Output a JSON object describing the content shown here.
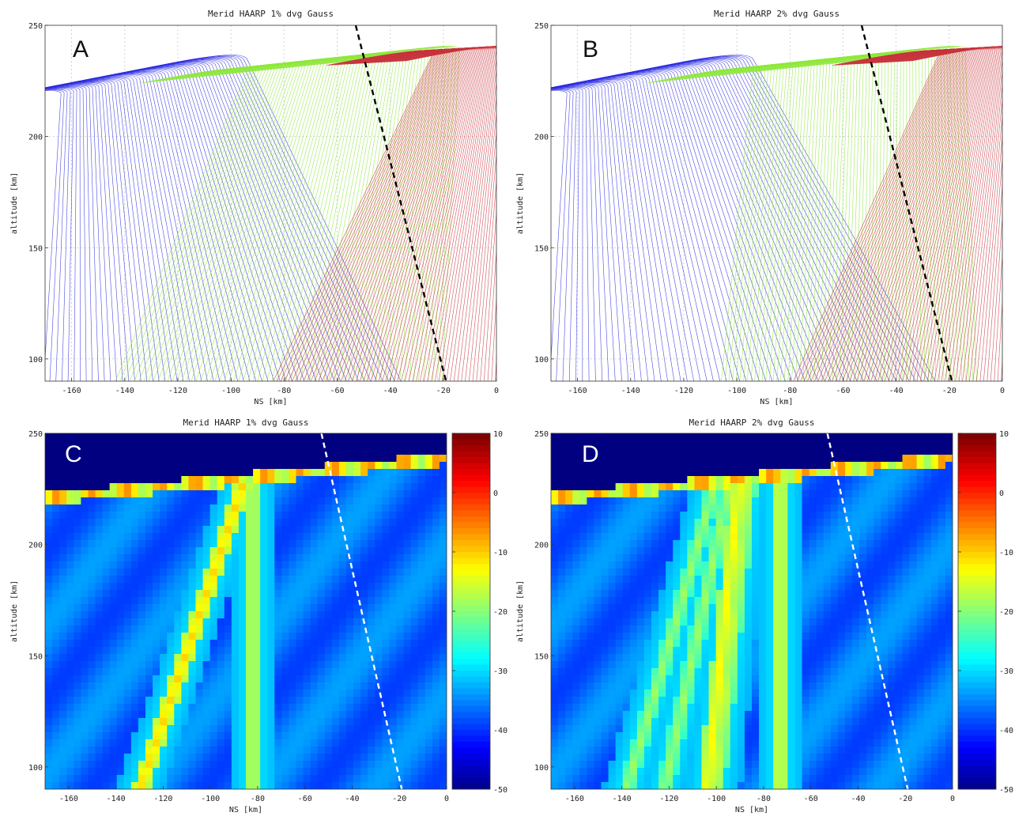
{
  "chart_data": [
    {
      "panel": "A",
      "type": "line",
      "title": "Merid HAARP 1% dvg Gauss",
      "xlabel": "NS [km]",
      "ylabel": "altitude [km]",
      "xlim": [
        -170,
        0
      ],
      "ylim": [
        90,
        250
      ],
      "xticks": [
        -160,
        -140,
        -120,
        -100,
        -80,
        -60,
        -40,
        -20,
        0
      ],
      "yticks": [
        100,
        150,
        200,
        250
      ],
      "grid": true,
      "series": [
        {
          "color": "#2a2ae0",
          "ray_count": 60,
          "x_at_250": [
            -170,
            -100
          ],
          "x_at_100": [
            -170,
            -40
          ],
          "apex_altitude": [
            220,
            236
          ]
        },
        {
          "color": "#8ee83a",
          "ray_count": 70,
          "x_at_250": [
            -100,
            -20
          ],
          "x_at_100": [
            -140,
            -20
          ],
          "apex_altitude": [
            230,
            240
          ]
        },
        {
          "color": "#c8323c",
          "ray_count": 60,
          "x_at_250": [
            -30,
            0
          ],
          "x_at_100": [
            -80,
            0
          ],
          "apex_altitude": [
            238,
            240
          ]
        }
      ],
      "reference_line": {
        "color": "#000000",
        "style": "dashed",
        "x_top": -53,
        "y_top": 250,
        "x_bottom": -19,
        "y_bottom": 90
      }
    },
    {
      "panel": "B",
      "type": "line",
      "title": "Merid HAARP 2% dvg Gauss",
      "xlabel": "NS [km]",
      "ylabel": "altitude [km]",
      "xlim": [
        -170,
        0
      ],
      "ylim": [
        90,
        250
      ],
      "xticks": [
        -160,
        -140,
        -120,
        -100,
        -80,
        -60,
        -40,
        -20,
        0
      ],
      "yticks": [
        100,
        150,
        200,
        250
      ],
      "grid": true,
      "series": [
        {
          "color": "#2a2ae0",
          "ray_count": 60,
          "x_at_250": [
            -170,
            -100
          ],
          "x_at_100": [
            -170,
            -30
          ],
          "apex_altitude": [
            220,
            236
          ]
        },
        {
          "color": "#8ee83a",
          "ray_count": 70,
          "x_at_250": [
            -100,
            -20
          ],
          "x_at_100": [
            -105,
            -10
          ],
          "apex_altitude": [
            230,
            240
          ]
        },
        {
          "color": "#c8323c",
          "ray_count": 60,
          "x_at_250": [
            -30,
            0
          ],
          "x_at_100": [
            -75,
            0
          ],
          "apex_altitude": [
            238,
            240
          ]
        }
      ],
      "reference_line": {
        "color": "#000000",
        "style": "dashed",
        "x_top": -53,
        "y_top": 250,
        "x_bottom": -19,
        "y_bottom": 90
      }
    },
    {
      "panel": "C",
      "type": "heatmap",
      "title": "Merid HAARP 1% dvg Gauss",
      "xlabel": "NS [km]",
      "ylabel": "altitude [km]",
      "xlim": [
        -170,
        0
      ],
      "ylim": [
        90,
        250
      ],
      "xticks": [
        -160,
        -140,
        -120,
        -100,
        -80,
        -60,
        -40,
        -20,
        0
      ],
      "yticks": [
        100,
        150,
        200,
        250
      ],
      "colorbar": {
        "ticks": [
          10,
          0,
          -10,
          -20,
          -30,
          -40,
          -50
        ],
        "range": [
          -50,
          10
        ],
        "colormap": "jet"
      },
      "bands": [
        {
          "x_top": -85,
          "x_bottom": -130,
          "value": -10
        },
        {
          "x_top": -82,
          "x_bottom": -82,
          "value": -15
        }
      ],
      "reference_line": {
        "color": "#ffffff",
        "style": "dashed",
        "x_top": -53,
        "y_top": 250,
        "x_bottom": -19,
        "y_bottom": 90
      }
    },
    {
      "panel": "D",
      "type": "heatmap",
      "title": "Merid HAARP 2% dvg Gauss",
      "xlabel": "NS [km]",
      "ylabel": "altitude [km]",
      "xlim": [
        -170,
        0
      ],
      "ylim": [
        90,
        250
      ],
      "xticks": [
        -160,
        -140,
        -120,
        -100,
        -80,
        -60,
        -40,
        -20,
        0
      ],
      "yticks": [
        100,
        150,
        200,
        250
      ],
      "colorbar": {
        "ticks": [
          10,
          0,
          -10,
          -20,
          -30,
          -40,
          -50
        ],
        "range": [
          -50,
          10
        ],
        "colormap": "jet"
      },
      "bands": [
        {
          "x_top": -100,
          "x_bottom": -138,
          "value": -18
        },
        {
          "x_top": -94,
          "x_bottom": -122,
          "value": -18
        },
        {
          "x_top": -90,
          "x_bottom": -104,
          "value": -12
        },
        {
          "x_top": -86,
          "x_bottom": -100,
          "value": -16
        },
        {
          "x_top": -73,
          "x_bottom": -73,
          "value": -14
        }
      ],
      "reference_line": {
        "color": "#ffffff",
        "style": "dashed",
        "x_top": -53,
        "y_top": 250,
        "x_bottom": -19,
        "y_bottom": 90
      }
    }
  ]
}
